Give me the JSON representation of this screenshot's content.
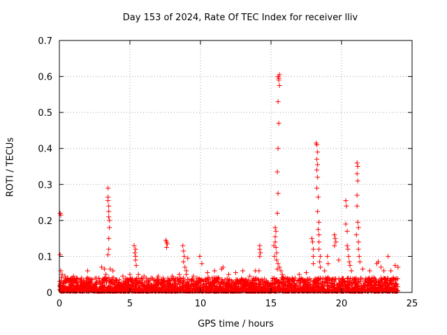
{
  "chart_data": {
    "type": "scatter",
    "title": "Day 153 of 2024, Rate Of TEC Index for receiver lliv",
    "xlabel": "GPS time / hours",
    "ylabel": "ROTI / TECUs",
    "xlim": [
      0,
      25
    ],
    "ylim": [
      0,
      0.7
    ],
    "xticks": [
      0,
      5,
      10,
      15,
      20,
      25
    ],
    "yticks": [
      0,
      0.1,
      0.2,
      0.3,
      0.4,
      0.5,
      0.6,
      0.7
    ],
    "xtick_labels": [
      "0",
      "5",
      "10",
      "15",
      "20",
      "25"
    ],
    "ytick_labels": [
      "0",
      "0.1",
      "0.2",
      "0.3",
      "0.4",
      "0.5",
      "0.6",
      "0.7"
    ],
    "grid": true,
    "marker": "+",
    "color": "#ff0000",
    "series": [
      {
        "name": "ROTI",
        "points": [
          [
            0.05,
            0.22
          ],
          [
            0.1,
            0.215
          ],
          [
            0.05,
            0.105
          ],
          [
            0.1,
            0.06
          ],
          [
            0.2,
            0.05
          ],
          [
            0.4,
            0.045
          ],
          [
            0.6,
            0.04
          ],
          [
            0.8,
            0.035
          ],
          [
            1.0,
            0.045
          ],
          [
            1.2,
            0.04
          ],
          [
            1.5,
            0.03
          ],
          [
            2.0,
            0.06
          ],
          [
            2.3,
            0.035
          ],
          [
            2.8,
            0.04
          ],
          [
            3.0,
            0.07
          ],
          [
            3.2,
            0.065
          ],
          [
            3.3,
            0.05
          ],
          [
            3.45,
            0.29
          ],
          [
            3.45,
            0.265
          ],
          [
            3.45,
            0.255
          ],
          [
            3.5,
            0.24
          ],
          [
            3.5,
            0.225
          ],
          [
            3.5,
            0.21
          ],
          [
            3.55,
            0.2
          ],
          [
            3.55,
            0.18
          ],
          [
            3.5,
            0.15
          ],
          [
            3.5,
            0.12
          ],
          [
            3.45,
            0.105
          ],
          [
            3.6,
            0.065
          ],
          [
            3.8,
            0.06
          ],
          [
            4.5,
            0.045
          ],
          [
            5.0,
            0.05
          ],
          [
            5.3,
            0.13
          ],
          [
            5.4,
            0.12
          ],
          [
            5.35,
            0.11
          ],
          [
            5.4,
            0.1
          ],
          [
            5.4,
            0.09
          ],
          [
            5.45,
            0.075
          ],
          [
            5.6,
            0.05
          ],
          [
            6.0,
            0.045
          ],
          [
            6.5,
            0.04
          ],
          [
            7.0,
            0.045
          ],
          [
            7.55,
            0.145
          ],
          [
            7.6,
            0.14
          ],
          [
            7.65,
            0.135
          ],
          [
            7.6,
            0.125
          ],
          [
            8.0,
            0.045
          ],
          [
            8.5,
            0.05
          ],
          [
            8.75,
            0.13
          ],
          [
            8.8,
            0.115
          ],
          [
            8.85,
            0.1
          ],
          [
            8.8,
            0.085
          ],
          [
            8.9,
            0.07
          ],
          [
            9.0,
            0.06
          ],
          [
            9.1,
            0.095
          ],
          [
            9.0,
            0.05
          ],
          [
            9.5,
            0.045
          ],
          [
            9.95,
            0.1
          ],
          [
            10.1,
            0.08
          ],
          [
            10.5,
            0.055
          ],
          [
            11.0,
            0.06
          ],
          [
            11.5,
            0.065
          ],
          [
            11.6,
            0.07
          ],
          [
            12.0,
            0.05
          ],
          [
            12.5,
            0.055
          ],
          [
            13.0,
            0.06
          ],
          [
            13.5,
            0.045
          ],
          [
            13.9,
            0.06
          ],
          [
            14.2,
            0.13
          ],
          [
            14.2,
            0.12
          ],
          [
            14.25,
            0.11
          ],
          [
            14.2,
            0.1
          ],
          [
            14.15,
            0.06
          ],
          [
            15.2,
            0.13
          ],
          [
            15.3,
            0.18
          ],
          [
            15.35,
            0.17
          ],
          [
            15.3,
            0.155
          ],
          [
            15.3,
            0.14
          ],
          [
            15.35,
            0.125
          ],
          [
            15.4,
            0.11
          ],
          [
            15.25,
            0.1
          ],
          [
            15.4,
            0.09
          ],
          [
            15.5,
            0.08
          ],
          [
            15.45,
            0.065
          ],
          [
            15.6,
            0.07
          ],
          [
            15.7,
            0.06
          ],
          [
            15.8,
            0.05
          ],
          [
            15.9,
            0.04
          ],
          [
            15.5,
            0.6
          ],
          [
            15.6,
            0.605
          ],
          [
            15.55,
            0.595
          ],
          [
            15.55,
            0.59
          ],
          [
            15.6,
            0.575
          ],
          [
            15.5,
            0.53
          ],
          [
            15.55,
            0.47
          ],
          [
            15.5,
            0.4
          ],
          [
            15.45,
            0.335
          ],
          [
            15.5,
            0.275
          ],
          [
            15.45,
            0.22
          ],
          [
            16.5,
            0.04
          ],
          [
            17.0,
            0.05
          ],
          [
            17.5,
            0.055
          ],
          [
            17.9,
            0.15
          ],
          [
            17.95,
            0.14
          ],
          [
            18.0,
            0.12
          ],
          [
            18.0,
            0.1
          ],
          [
            18.0,
            0.08
          ],
          [
            18.2,
            0.415
          ],
          [
            18.25,
            0.41
          ],
          [
            18.3,
            0.39
          ],
          [
            18.25,
            0.37
          ],
          [
            18.3,
            0.355
          ],
          [
            18.25,
            0.34
          ],
          [
            18.3,
            0.32
          ],
          [
            18.25,
            0.29
          ],
          [
            18.35,
            0.265
          ],
          [
            18.3,
            0.225
          ],
          [
            18.4,
            0.195
          ],
          [
            18.35,
            0.175
          ],
          [
            18.4,
            0.16
          ],
          [
            18.4,
            0.14
          ],
          [
            18.4,
            0.12
          ],
          [
            18.5,
            0.1
          ],
          [
            18.45,
            0.085
          ],
          [
            18.5,
            0.07
          ],
          [
            18.8,
            0.06
          ],
          [
            19.0,
            0.1
          ],
          [
            19.05,
            0.08
          ],
          [
            19.5,
            0.16
          ],
          [
            19.55,
            0.15
          ],
          [
            19.6,
            0.14
          ],
          [
            19.5,
            0.13
          ],
          [
            19.8,
            0.09
          ],
          [
            20.3,
            0.255
          ],
          [
            20.35,
            0.24
          ],
          [
            20.3,
            0.19
          ],
          [
            20.4,
            0.17
          ],
          [
            20.4,
            0.13
          ],
          [
            20.45,
            0.12
          ],
          [
            20.5,
            0.1
          ],
          [
            20.55,
            0.085
          ],
          [
            20.6,
            0.075
          ],
          [
            20.7,
            0.06
          ],
          [
            21.1,
            0.36
          ],
          [
            21.15,
            0.35
          ],
          [
            21.1,
            0.33
          ],
          [
            21.15,
            0.31
          ],
          [
            21.1,
            0.27
          ],
          [
            21.1,
            0.24
          ],
          [
            21.15,
            0.195
          ],
          [
            21.2,
            0.18
          ],
          [
            21.05,
            0.16
          ],
          [
            21.2,
            0.14
          ],
          [
            21.2,
            0.12
          ],
          [
            21.25,
            0.1
          ],
          [
            21.3,
            0.085
          ],
          [
            21.5,
            0.065
          ],
          [
            22.0,
            0.06
          ],
          [
            22.5,
            0.08
          ],
          [
            22.6,
            0.085
          ],
          [
            22.8,
            0.07
          ],
          [
            23.0,
            0.06
          ],
          [
            23.3,
            0.1
          ],
          [
            23.5,
            0.06
          ],
          [
            23.8,
            0.075
          ],
          [
            24.0,
            0.07
          ]
        ]
      }
    ]
  }
}
